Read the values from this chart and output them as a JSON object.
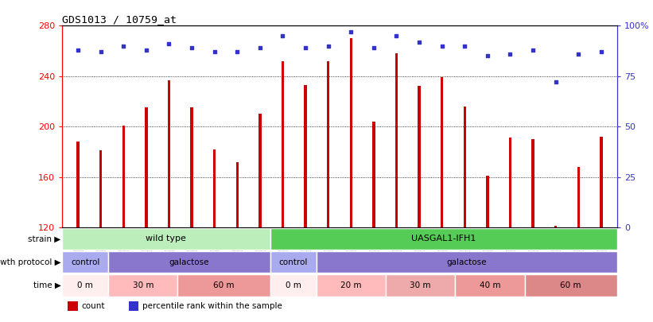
{
  "title": "GDS1013 / 10759_at",
  "samples": [
    "GSM34678",
    "GSM34681",
    "GSM34684",
    "GSM34679",
    "GSM34682",
    "GSM34685",
    "GSM34680",
    "GSM34683",
    "GSM34686",
    "GSM34687",
    "GSM34692",
    "GSM34697",
    "GSM34688",
    "GSM34693",
    "GSM34698",
    "GSM34689",
    "GSM34694",
    "GSM34699",
    "GSM34690",
    "GSM34695",
    "GSM34700",
    "GSM34691",
    "GSM34696",
    "GSM34701"
  ],
  "counts": [
    188,
    181,
    201,
    215,
    237,
    215,
    182,
    172,
    210,
    252,
    233,
    252,
    270,
    204,
    258,
    232,
    239,
    216,
    161,
    191,
    190,
    121,
    168,
    192
  ],
  "percentiles": [
    88,
    87,
    90,
    88,
    91,
    89,
    87,
    87,
    89,
    95,
    89,
    90,
    97,
    89,
    95,
    92,
    90,
    90,
    85,
    86,
    88,
    72,
    86,
    87
  ],
  "ylim_left": [
    120,
    280
  ],
  "ylim_right": [
    0,
    100
  ],
  "yticks_left": [
    120,
    160,
    200,
    240,
    280
  ],
  "yticks_right": [
    0,
    25,
    50,
    75,
    100
  ],
  "yticklabels_right": [
    "0",
    "25",
    "50",
    "75",
    "100%"
  ],
  "bar_color": "#cc0000",
  "dot_color": "#3333cc",
  "strain_labels": [
    {
      "label": "wild type",
      "start": 0,
      "end": 9,
      "color": "#bbeebb"
    },
    {
      "label": "UASGAL1-IFH1",
      "start": 9,
      "end": 24,
      "color": "#55cc55"
    }
  ],
  "growth_labels": [
    {
      "label": "control",
      "start": 0,
      "end": 2,
      "color": "#aaaaee"
    },
    {
      "label": "galactose",
      "start": 2,
      "end": 9,
      "color": "#8877cc"
    },
    {
      "label": "control",
      "start": 9,
      "end": 11,
      "color": "#aaaaee"
    },
    {
      "label": "galactose",
      "start": 11,
      "end": 24,
      "color": "#8877cc"
    }
  ],
  "time_labels": [
    {
      "label": "0 m",
      "start": 0,
      "end": 2,
      "color": "#ffeeee"
    },
    {
      "label": "30 m",
      "start": 2,
      "end": 5,
      "color": "#ffbbbb"
    },
    {
      "label": "60 m",
      "start": 5,
      "end": 9,
      "color": "#ee9999"
    },
    {
      "label": "0 m",
      "start": 9,
      "end": 11,
      "color": "#ffeeee"
    },
    {
      "label": "20 m",
      "start": 11,
      "end": 14,
      "color": "#ffbbbb"
    },
    {
      "label": "30 m",
      "start": 14,
      "end": 17,
      "color": "#eeaaaa"
    },
    {
      "label": "40 m",
      "start": 17,
      "end": 20,
      "color": "#ee9999"
    },
    {
      "label": "60 m",
      "start": 20,
      "end": 24,
      "color": "#dd8888"
    }
  ],
  "legend_items": [
    {
      "color": "#cc0000",
      "label": "count"
    },
    {
      "color": "#3333cc",
      "label": "percentile rank within the sample"
    }
  ],
  "bg_color": "#ffffff",
  "tick_label_bg": "#dddddd"
}
